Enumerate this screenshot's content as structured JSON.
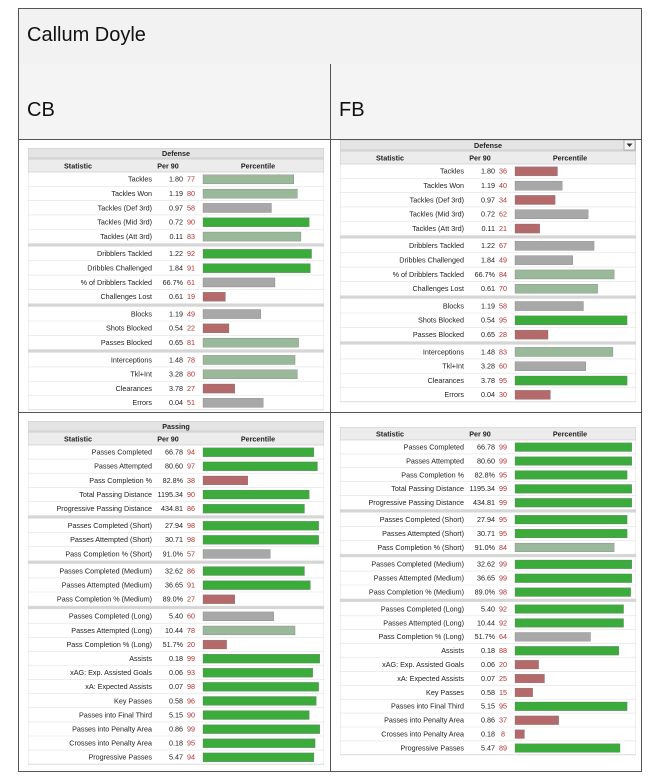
{
  "page": {
    "title": "Callum Doyle"
  },
  "columns": [
    "CB",
    "FB"
  ],
  "table_headers": {
    "statistic": "Statistic",
    "per90": "Per 90",
    "percentile": "Percentile"
  },
  "colors": {
    "high": "#3bab3b",
    "mid": "#9ab89a",
    "avg": "#a8a8a8",
    "low": "#b46a6a",
    "veryhigh": "#2ea42e"
  },
  "chart_data": [
    {
      "type": "table",
      "panel": "cb-defense",
      "title": "Defense",
      "groups": [
        [
          [
            "Tackles",
            "1.80",
            77
          ],
          [
            "Tackles Won",
            "1.19",
            80
          ],
          [
            "Tackles (Def 3rd)",
            "0.97",
            58
          ],
          [
            "Tackles (Mid 3rd)",
            "0.72",
            90
          ],
          [
            "Tackles (Att 3rd)",
            "0.11",
            83
          ]
        ],
        [
          [
            "Dribblers Tackled",
            "1.22",
            92
          ],
          [
            "Dribbles Challenged",
            "1.84",
            91
          ],
          [
            "% of Dribblers Tackled",
            "66.7%",
            61
          ],
          [
            "Challenges Lost",
            "0.61",
            19
          ]
        ],
        [
          [
            "Blocks",
            "1.19",
            49
          ],
          [
            "Shots Blocked",
            "0.54",
            22
          ],
          [
            "Passes Blocked",
            "0.65",
            81
          ]
        ],
        [
          [
            "Interceptions",
            "1.48",
            78
          ],
          [
            "Tkl+Int",
            "3.28",
            80
          ],
          [
            "Clearances",
            "3.78",
            27
          ],
          [
            "Errors",
            "0.04",
            51
          ]
        ]
      ]
    },
    {
      "type": "table",
      "panel": "fb-defense",
      "title": "Defense",
      "groups": [
        [
          [
            "Tackles",
            "1.80",
            36
          ],
          [
            "Tackles Won",
            "1.19",
            40
          ],
          [
            "Tackles (Def 3rd)",
            "0.97",
            34
          ],
          [
            "Tackles (Mid 3rd)",
            "0.72",
            62
          ],
          [
            "Tackles (Att 3rd)",
            "0.11",
            21
          ]
        ],
        [
          [
            "Dribblers Tackled",
            "1.22",
            67
          ],
          [
            "Dribbles Challenged",
            "1.84",
            49
          ],
          [
            "% of Dribblers Tackled",
            "66.7%",
            84
          ],
          [
            "Challenges Lost",
            "0.61",
            70
          ]
        ],
        [
          [
            "Blocks",
            "1.19",
            58
          ],
          [
            "Shots Blocked",
            "0.54",
            95
          ],
          [
            "Passes Blocked",
            "0.65",
            28
          ]
        ],
        [
          [
            "Interceptions",
            "1.48",
            83
          ],
          [
            "Tkl+Int",
            "3.28",
            60
          ],
          [
            "Clearances",
            "3.78",
            95
          ],
          [
            "Errors",
            "0.04",
            30
          ]
        ]
      ]
    },
    {
      "type": "table",
      "panel": "cb-passing",
      "title": "Passing",
      "groups": [
        [
          [
            "Passes Completed",
            "66.78",
            94
          ],
          [
            "Passes Attempted",
            "80.60",
            97
          ],
          [
            "Pass Completion %",
            "82.8%",
            38
          ],
          [
            "Total Passing Distance",
            "1195.34",
            90
          ],
          [
            "Progressive Passing Distance",
            "434.81",
            86
          ]
        ],
        [
          [
            "Passes Completed (Short)",
            "27.94",
            98
          ],
          [
            "Passes Attempted (Short)",
            "30.71",
            98
          ],
          [
            "Pass Completion % (Short)",
            "91.0%",
            57
          ]
        ],
        [
          [
            "Passes Completed (Medium)",
            "32.62",
            86
          ],
          [
            "Passes Attempted (Medium)",
            "36.65",
            91
          ],
          [
            "Pass Completion % (Medium)",
            "89.0%",
            27
          ]
        ],
        [
          [
            "Passes Completed (Long)",
            "5.40",
            60
          ],
          [
            "Passes Attempted (Long)",
            "10.44",
            78
          ],
          [
            "Pass Completion % (Long)",
            "51.7%",
            20
          ],
          [
            "Assists",
            "0.18",
            99
          ],
          [
            "xAG: Exp. Assisted Goals",
            "0.06",
            93
          ],
          [
            "xA: Expected Assists",
            "0.07",
            98
          ],
          [
            "Key Passes",
            "0.58",
            96
          ],
          [
            "Passes into Final Third",
            "5.15",
            90
          ],
          [
            "Passes into Penalty Area",
            "0.86",
            99
          ],
          [
            "Crosses into Penalty Area",
            "0.18",
            95
          ],
          [
            "Progressive Passes",
            "5.47",
            94
          ]
        ]
      ]
    },
    {
      "type": "table",
      "panel": "fb-passing",
      "title": "",
      "groups": [
        [
          [
            "Passes Completed",
            "66.78",
            99
          ],
          [
            "Passes Attempted",
            "80.60",
            99
          ],
          [
            "Pass Completion %",
            "82.8%",
            95
          ],
          [
            "Total Passing Distance",
            "1195.34",
            99
          ],
          [
            "Progressive Passing Distance",
            "434.81",
            99
          ]
        ],
        [
          [
            "Passes Completed (Short)",
            "27.94",
            95
          ],
          [
            "Passes Attempted (Short)",
            "30.71",
            95
          ],
          [
            "Pass Completion % (Short)",
            "91.0%",
            84
          ]
        ],
        [
          [
            "Passes Completed (Medium)",
            "32.62",
            99
          ],
          [
            "Passes Attempted (Medium)",
            "36.65",
            99
          ],
          [
            "Pass Completion % (Medium)",
            "89.0%",
            98
          ]
        ],
        [
          [
            "Passes Completed (Long)",
            "5.40",
            92
          ],
          [
            "Passes Attempted (Long)",
            "10.44",
            92
          ],
          [
            "Pass Completion % (Long)",
            "51.7%",
            64
          ],
          [
            "Assists",
            "0.18",
            88
          ],
          [
            "xAG: Exp. Assisted Goals",
            "0.06",
            20
          ],
          [
            "xA: Expected Assists",
            "0.07",
            25
          ],
          [
            "Key Passes",
            "0.58",
            15
          ],
          [
            "Passes into Final Third",
            "5.15",
            95
          ],
          [
            "Passes into Penalty Area",
            "0.86",
            37
          ],
          [
            "Crosses into Penalty Area",
            "0.18",
            8
          ],
          [
            "Progressive Passes",
            "5.47",
            89
          ]
        ]
      ]
    }
  ]
}
